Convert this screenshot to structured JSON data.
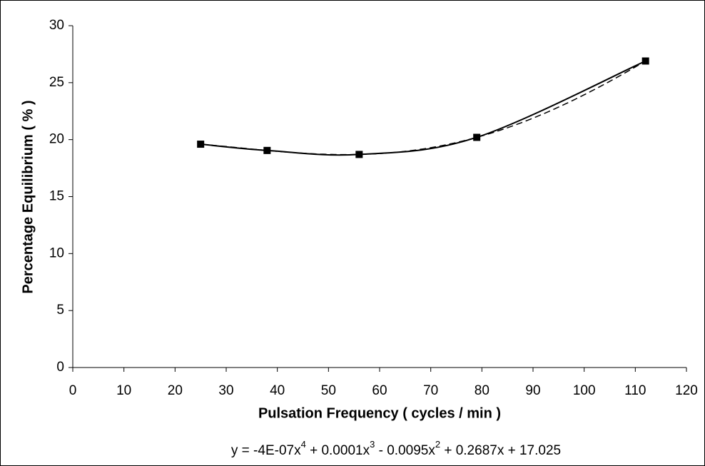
{
  "chart_data": {
    "type": "line",
    "x_label": "Pulsation Frequency ( cycles / min )",
    "y_label": "Percentage Equilibrium ( % )",
    "x": [
      25,
      38,
      56,
      79,
      112
    ],
    "series": [
      {
        "color": "#000000",
        "marker": "square",
        "values": [
          19.6,
          19.05,
          18.7,
          20.2,
          26.9
        ]
      }
    ],
    "trendline": {
      "type": "polynomial",
      "order": 4,
      "style": "dashed",
      "equation": [
        "y = -4E-07x",
        "4",
        " + 0.0001x",
        "3",
        " - 0.0095x",
        "2",
        " + 0.2687x + 17.025"
      ]
    },
    "xlim": [
      0,
      120
    ],
    "xticks": [
      0,
      10,
      20,
      30,
      40,
      50,
      60,
      70,
      80,
      90,
      100,
      110,
      120
    ],
    "ylim": [
      0,
      30
    ],
    "yticks": [
      0,
      5,
      10,
      15,
      20,
      25,
      30
    ],
    "grid": false
  }
}
